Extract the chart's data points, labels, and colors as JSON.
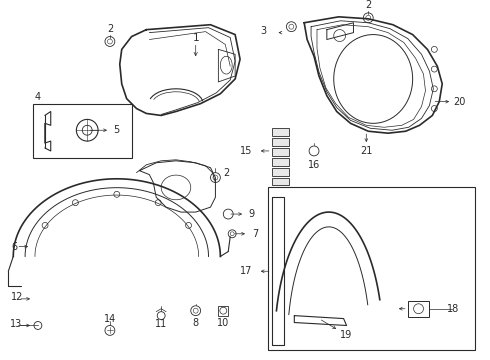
{
  "background_color": "#ffffff",
  "line_color": "#2a2a2a",
  "label_color": "#000000",
  "fig_w": 4.9,
  "fig_h": 3.6,
  "dpi": 100
}
